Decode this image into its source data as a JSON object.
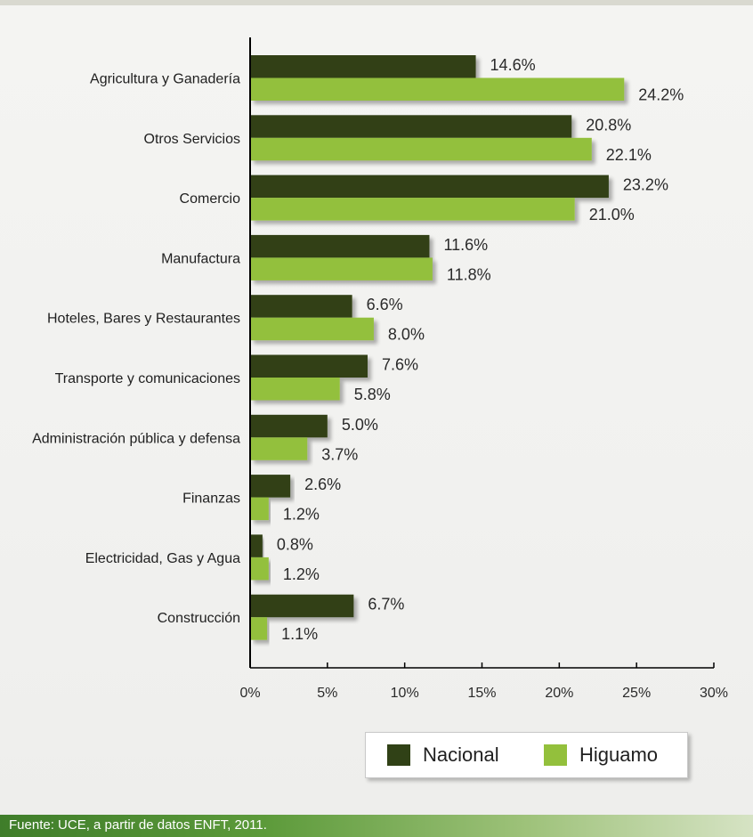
{
  "colors": {
    "nacional": "#304116",
    "higuamo": "#93c03c",
    "axis": "#000000"
  },
  "chart_data": {
    "type": "bar",
    "orientation": "horizontal",
    "categories": [
      "Agricultura y Ganadería",
      "Otros Servicios",
      "Comercio",
      "Manufactura",
      "Hoteles, Bares y Restaurantes",
      "Transporte y comunicaciones",
      "Administración pública y defensa",
      "Finanzas",
      "Electricidad, Gas y Agua",
      "Construcción"
    ],
    "series": [
      {
        "name": "Nacional",
        "values": [
          14.6,
          20.8,
          23.2,
          11.6,
          6.6,
          7.6,
          5.0,
          2.6,
          0.8,
          6.7
        ],
        "labels": [
          "14.6%",
          "20.8%",
          "23.2%",
          "11.6%",
          "6.6%",
          "7.6%",
          "5.0%",
          "2.6%",
          "0.8%",
          "6.7%"
        ]
      },
      {
        "name": "Higuamo",
        "values": [
          24.2,
          22.1,
          21.0,
          11.8,
          8.0,
          5.8,
          3.7,
          1.2,
          1.2,
          1.1
        ],
        "labels": [
          "24.2%",
          "22.1%",
          "21.0%",
          "11.8%",
          "8.0%",
          "5.8%",
          "3.7%",
          "1.2%",
          "1.2%",
          "1.1%"
        ]
      }
    ],
    "xlim": [
      0,
      30
    ],
    "xticks": [
      0,
      5,
      10,
      15,
      20,
      25,
      30
    ],
    "xtick_labels": [
      "0%",
      "5%",
      "10%",
      "15%",
      "20%",
      "25%",
      "30%"
    ],
    "grid": false,
    "legend_position": "bottom-right"
  },
  "legend": {
    "nacional_label": "Nacional",
    "higuamo_label": "Higuamo"
  },
  "footer": {
    "source": "Fuente: UCE, a partir de datos ENFT, 2011."
  }
}
